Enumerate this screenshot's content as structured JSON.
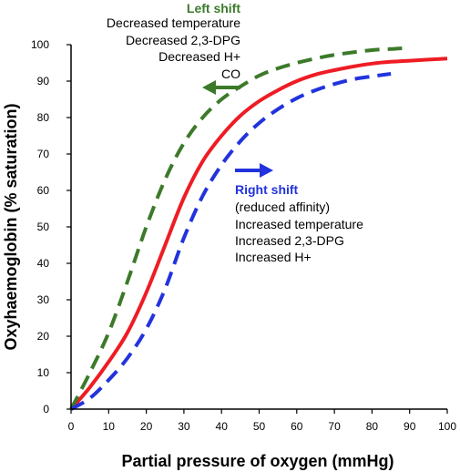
{
  "chart_data": {
    "type": "line",
    "xlabel": "Partial pressure of oxygen (mmHg)",
    "ylabel": "Oxyhaemoglobin (% saturation)",
    "xlim": [
      0,
      100
    ],
    "ylim": [
      0,
      100
    ],
    "x_ticks": [
      "0",
      "10",
      "20",
      "30",
      "40",
      "50",
      "60",
      "70",
      "80",
      "90",
      "100"
    ],
    "y_ticks": [
      "0",
      "10",
      "20",
      "30",
      "40",
      "50",
      "60",
      "70",
      "80",
      "90",
      "100"
    ],
    "grid": false,
    "series": [
      {
        "style": "solid",
        "color": "#ee1c24",
        "x": [
          0,
          5,
          10,
          15,
          20,
          25,
          30,
          35,
          40,
          45,
          50,
          55,
          60,
          65,
          70,
          75,
          80,
          85,
          90,
          95,
          100
        ],
        "y": [
          0,
          6,
          13,
          21,
          32,
          45,
          58,
          68,
          75,
          80.5,
          84.5,
          87.5,
          90,
          91.8,
          93,
          94,
          94.8,
          95.3,
          95.6,
          95.9,
          96.2
        ]
      },
      {
        "style": "dashed",
        "color": "#3c7a2a",
        "x": [
          0,
          5,
          10,
          15,
          20,
          25,
          30,
          35,
          40,
          45,
          50,
          55,
          60,
          65,
          70,
          75,
          80,
          85,
          88
        ],
        "y": [
          0,
          10,
          21,
          35,
          50,
          63,
          73,
          80,
          85,
          88.5,
          91.5,
          93.5,
          95,
          96.2,
          97.2,
          97.9,
          98.5,
          98.8,
          99
        ]
      },
      {
        "style": "dashed",
        "color": "#2233dd",
        "x": [
          0,
          5,
          10,
          15,
          20,
          25,
          30,
          35,
          40,
          45,
          50,
          55,
          60,
          65,
          70,
          75,
          80,
          85
        ],
        "y": [
          0,
          3,
          8,
          14,
          22,
          33,
          47,
          58.5,
          67,
          73.5,
          78.5,
          82.3,
          85.3,
          87.5,
          89.2,
          90.5,
          91.3,
          92
        ]
      }
    ],
    "annotations": {
      "left_shift": {
        "title": "Left shift",
        "title_color": "#3c7a2a",
        "lines": [
          "Decreased temperature",
          "Decreased 2,3-DPG",
          "Decreased H+",
          "CO"
        ]
      },
      "right_shift": {
        "title": "Right shift",
        "title_color": "#2233dd",
        "lines": [
          "(reduced affinity)",
          "Increased temperature",
          "Increased 2,3-DPG",
          "Increased H+"
        ]
      }
    }
  }
}
